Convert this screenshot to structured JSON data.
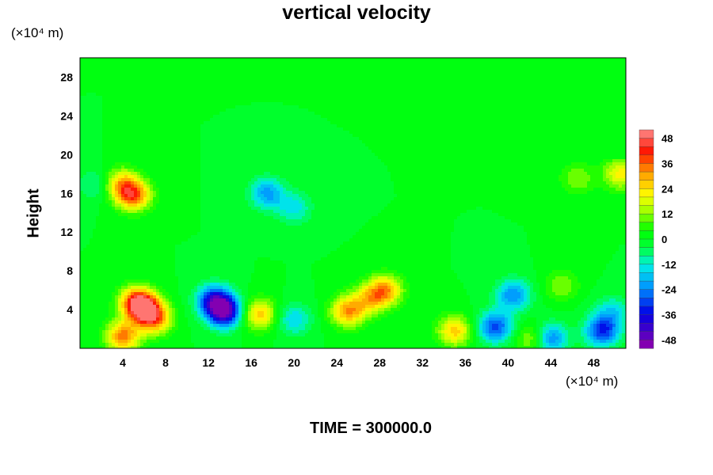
{
  "chart_data": {
    "type": "heatmap",
    "title": "vertical velocity",
    "ylabel": "Height",
    "y_unit": "(×10⁴ m)",
    "x_unit": "(×10⁴ m)",
    "footer": "TIME = 300000.0",
    "xlim": [
      0,
      51
    ],
    "ylim": [
      0,
      30
    ],
    "x_ticks": [
      "4",
      "8",
      "12",
      "16",
      "20",
      "24",
      "28",
      "32",
      "36",
      "40",
      "44",
      "48"
    ],
    "y_ticks": [
      "4",
      "8",
      "12",
      "16",
      "20",
      "24",
      "28"
    ],
    "colorbar": {
      "range": [
        -52,
        52
      ],
      "levels": 26,
      "ticks": [
        "48",
        "36",
        "24",
        "12",
        "0",
        "-12",
        "-24",
        "-36",
        "-48"
      ]
    },
    "background_value": 0,
    "features": [
      {
        "x": 6.0,
        "y": 4.2,
        "value": 38
      },
      {
        "x": 5.2,
        "y": 4.8,
        "value": 30
      },
      {
        "x": 7.0,
        "y": 3.0,
        "value": 30
      },
      {
        "x": 4.0,
        "y": 1.2,
        "value": 34
      },
      {
        "x": 5.0,
        "y": 15.8,
        "value": 36
      },
      {
        "x": 3.8,
        "y": 17.0,
        "value": 24
      },
      {
        "x": 13.5,
        "y": 3.8,
        "value": -46
      },
      {
        "x": 12.5,
        "y": 5.0,
        "value": -32
      },
      {
        "x": 16.8,
        "y": 3.5,
        "value": 26
      },
      {
        "x": 20.0,
        "y": 3.0,
        "value": -16
      },
      {
        "x": 25.0,
        "y": 3.8,
        "value": 30
      },
      {
        "x": 28.5,
        "y": 6.0,
        "value": 30
      },
      {
        "x": 27.0,
        "y": 5.0,
        "value": 20
      },
      {
        "x": 35.0,
        "y": 1.8,
        "value": 26
      },
      {
        "x": 38.8,
        "y": 2.2,
        "value": -30
      },
      {
        "x": 40.5,
        "y": 5.5,
        "value": -24
      },
      {
        "x": 42.5,
        "y": 1.0,
        "value": 20
      },
      {
        "x": 43.8,
        "y": 1.0,
        "value": -30
      },
      {
        "x": 48.8,
        "y": 1.8,
        "value": -32
      },
      {
        "x": 49.8,
        "y": 3.8,
        "value": -14
      },
      {
        "x": 1.5,
        "y": 17.0,
        "value": -10
      },
      {
        "x": 17.5,
        "y": 16.0,
        "value": -22
      },
      {
        "x": 20.0,
        "y": 14.5,
        "value": -14
      },
      {
        "x": 46.5,
        "y": 17.5,
        "value": 12
      },
      {
        "x": 50.5,
        "y": 18.0,
        "value": 22
      },
      {
        "x": 45.0,
        "y": 6.5,
        "value": 12
      }
    ]
  }
}
